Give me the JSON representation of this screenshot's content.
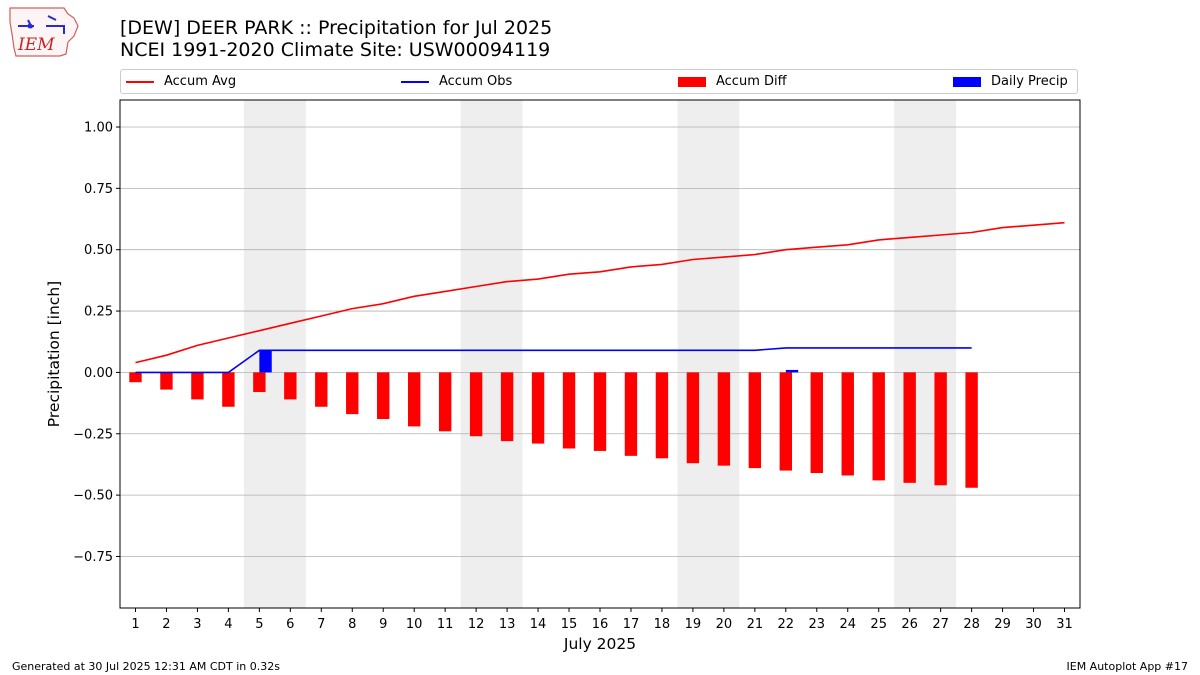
{
  "header": {
    "title": "[DEW] DEER PARK :: Precipitation for Jul 2025",
    "subtitle": "NCEI 1991-2020 Climate Site: USW00094119",
    "logo_text": "IEM"
  },
  "legend": {
    "accum_avg": "Accum Avg",
    "accum_obs": "Accum Obs",
    "accum_diff": "Accum Diff",
    "daily_precip": "Daily Precip"
  },
  "footer": {
    "generated": "Generated at 30 Jul 2025 12:31 AM CDT in 0.32s",
    "app": "IEM Autoplot App #17"
  },
  "colors": {
    "accum_avg": "#ff0000",
    "accum_obs": "#0000ff",
    "accum_diff": "#ff0000",
    "daily_precip": "#0000ff",
    "weekend_shade": "#eeeeee",
    "grid": "#b0b0b0"
  },
  "chart_data": {
    "type": "bar",
    "xlabel": "July 2025",
    "ylabel": "Precipitation [inch]",
    "xlim": [
      0.5,
      31.5
    ],
    "ylim": [
      -0.96,
      1.11
    ],
    "xticks": [
      1,
      2,
      3,
      4,
      5,
      6,
      7,
      8,
      9,
      10,
      11,
      12,
      13,
      14,
      15,
      16,
      17,
      18,
      19,
      20,
      21,
      22,
      23,
      24,
      25,
      26,
      27,
      28,
      29,
      30,
      31
    ],
    "yticks": [
      -0.75,
      -0.5,
      -0.25,
      0.0,
      0.25,
      0.5,
      0.75,
      1.0
    ],
    "ytick_labels": [
      "−0.75",
      "−0.50",
      "−0.25",
      "0.00",
      "0.25",
      "0.50",
      "0.75",
      "1.00"
    ],
    "grid": "horizontal",
    "legend_position": "top",
    "shaded_weekends": [
      [
        5,
        6
      ],
      [
        12,
        13
      ],
      [
        19,
        20
      ],
      [
        26,
        27
      ]
    ],
    "series": [
      {
        "name": "Accum Avg",
        "type": "line",
        "x": [
          1,
          2,
          3,
          4,
          5,
          6,
          7,
          8,
          9,
          10,
          11,
          12,
          13,
          14,
          15,
          16,
          17,
          18,
          19,
          20,
          21,
          22,
          23,
          24,
          25,
          26,
          27,
          28,
          29,
          30,
          31
        ],
        "values": [
          0.04,
          0.07,
          0.11,
          0.14,
          0.17,
          0.2,
          0.23,
          0.26,
          0.28,
          0.31,
          0.33,
          0.35,
          0.37,
          0.38,
          0.4,
          0.41,
          0.43,
          0.44,
          0.46,
          0.47,
          0.48,
          0.5,
          0.51,
          0.52,
          0.54,
          0.55,
          0.56,
          0.57,
          0.59,
          0.6,
          0.61
        ]
      },
      {
        "name": "Accum Obs",
        "type": "line",
        "x": [
          1,
          2,
          3,
          4,
          5,
          6,
          7,
          8,
          9,
          10,
          11,
          12,
          13,
          14,
          15,
          16,
          17,
          18,
          19,
          20,
          21,
          22,
          23,
          24,
          25,
          26,
          27,
          28
        ],
        "values": [
          0,
          0,
          0,
          0,
          0.09,
          0.09,
          0.09,
          0.09,
          0.09,
          0.09,
          0.09,
          0.09,
          0.09,
          0.09,
          0.09,
          0.09,
          0.09,
          0.09,
          0.09,
          0.09,
          0.09,
          0.1,
          0.1,
          0.1,
          0.1,
          0.1,
          0.1,
          0.1
        ]
      },
      {
        "name": "Accum Diff",
        "type": "bar",
        "x": [
          1,
          2,
          3,
          4,
          5,
          6,
          7,
          8,
          9,
          10,
          11,
          12,
          13,
          14,
          15,
          16,
          17,
          18,
          19,
          20,
          21,
          22,
          23,
          24,
          25,
          26,
          27,
          28
        ],
        "values": [
          -0.04,
          -0.07,
          -0.11,
          -0.14,
          -0.08,
          -0.11,
          -0.14,
          -0.17,
          -0.19,
          -0.22,
          -0.24,
          -0.26,
          -0.28,
          -0.29,
          -0.31,
          -0.32,
          -0.34,
          -0.35,
          -0.37,
          -0.38,
          -0.39,
          -0.4,
          -0.41,
          -0.42,
          -0.44,
          -0.45,
          -0.46,
          -0.47
        ]
      },
      {
        "name": "Daily Precip",
        "type": "bar",
        "x": [
          5,
          22
        ],
        "values": [
          0.09,
          0.01
        ]
      }
    ]
  }
}
